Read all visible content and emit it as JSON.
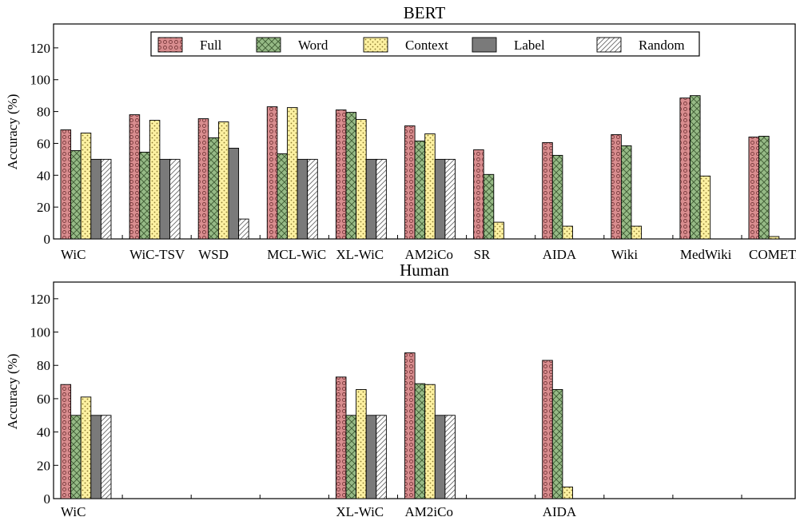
{
  "series_styles": [
    {
      "fill": "#d98d8f",
      "pattern": "circles"
    },
    {
      "fill": "#96ba86",
      "pattern": "crosshatch"
    },
    {
      "fill": "#fdf1a1",
      "pattern": "dots"
    },
    {
      "fill": "#7a7a7a",
      "pattern": "none"
    },
    {
      "fill": "#ffffff",
      "pattern": "diagonal"
    }
  ],
  "chart_data": [
    {
      "type": "bar",
      "title": "BERT",
      "ylabel": "Accuracy (%)",
      "ylim": [
        0,
        135
      ],
      "yticks": [
        0,
        20,
        40,
        60,
        80,
        100,
        120
      ],
      "grid": false,
      "legend_position": "top-center",
      "categories": [
        "WiC",
        "WiC-TSV",
        "WSD",
        "MCL-WiC",
        "XL-WiC",
        "AM2iCo",
        "SR",
        "AIDA",
        "Wiki",
        "MedWiki",
        "COMETA"
      ],
      "series": [
        {
          "name": "Full",
          "values": [
            68.5,
            78,
            75.5,
            83,
            81,
            71,
            56,
            60.5,
            65.5,
            88.5,
            64
          ]
        },
        {
          "name": "Word",
          "values": [
            55.5,
            54.5,
            63.5,
            53.5,
            79.5,
            61.5,
            40.5,
            52.5,
            58.5,
            90,
            64.5
          ]
        },
        {
          "name": "Context",
          "values": [
            66.5,
            74.5,
            73.5,
            82.5,
            75,
            66,
            10.5,
            8,
            8,
            39.5,
            1.5
          ]
        },
        {
          "name": "Label",
          "values": [
            50,
            50,
            57,
            50,
            50,
            50,
            null,
            null,
            null,
            null,
            null
          ]
        },
        {
          "name": "Random",
          "values": [
            50,
            50,
            12.5,
            50,
            50,
            50,
            null,
            null,
            null,
            null,
            null
          ]
        }
      ]
    },
    {
      "type": "bar",
      "title": "Human",
      "ylabel": "Accuracy (%)",
      "ylim": [
        0,
        130
      ],
      "yticks": [
        0,
        20,
        40,
        60,
        80,
        100,
        120
      ],
      "grid": false,
      "categories": [
        "WiC",
        "",
        "",
        "",
        "XL-WiC",
        "AM2iCo",
        "",
        "AIDA",
        "",
        "",
        ""
      ],
      "series": [
        {
          "name": "Full",
          "values": [
            68.5,
            null,
            null,
            null,
            73,
            87.5,
            null,
            83,
            null,
            null,
            null
          ]
        },
        {
          "name": "Word",
          "values": [
            50,
            null,
            null,
            null,
            50,
            69,
            null,
            65.5,
            null,
            null,
            null
          ]
        },
        {
          "name": "Context",
          "values": [
            61,
            null,
            null,
            null,
            65.5,
            68.5,
            null,
            7,
            null,
            null,
            null
          ]
        },
        {
          "name": "Label",
          "values": [
            50,
            null,
            null,
            null,
            50,
            50,
            null,
            null,
            null,
            null,
            null
          ]
        },
        {
          "name": "Random",
          "values": [
            50,
            null,
            null,
            null,
            50,
            50,
            null,
            null,
            null,
            null,
            null
          ]
        }
      ]
    }
  ]
}
